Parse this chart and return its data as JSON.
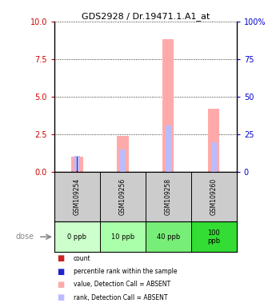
{
  "title": "GDS2928 / Dr.19471.1.A1_at",
  "samples": [
    "GSM109254",
    "GSM109256",
    "GSM109258",
    "GSM109260"
  ],
  "doses": [
    "0 ppb",
    "10 ppb",
    "40 ppb",
    "100\nppb"
  ],
  "dose_colors": [
    "#ccffcc",
    "#aaffaa",
    "#77ee77",
    "#33dd33"
  ],
  "bar_color_absent_value": "#ffaaaa",
  "bar_color_absent_rank": "#bbbbff",
  "bar_color_present_value": "#cc2222",
  "bar_color_present_rank": "#2222cc",
  "values_absent": [
    1.0,
    2.4,
    8.8,
    4.2
  ],
  "ranks_absent": [
    1.1,
    1.5,
    3.1,
    2.0
  ],
  "values_present": [
    0.08,
    0.0,
    0.0,
    0.0
  ],
  "ranks_present": [
    1.05,
    0.0,
    0.0,
    0.0
  ],
  "ylim_left": [
    0,
    10
  ],
  "ylim_right": [
    0,
    100
  ],
  "yticks_left": [
    0,
    2.5,
    5.0,
    7.5,
    10
  ],
  "yticks_right": [
    0,
    25,
    50,
    75,
    100
  ],
  "legend_items": [
    {
      "label": "count",
      "color": "#cc2222"
    },
    {
      "label": "percentile rank within the sample",
      "color": "#2222cc"
    },
    {
      "label": "value, Detection Call = ABSENT",
      "color": "#ffaaaa"
    },
    {
      "label": "rank, Detection Call = ABSENT",
      "color": "#bbbbff"
    }
  ],
  "sample_area_color": "#cccccc",
  "dose_label": "dose",
  "tick_color_left": "#cc0000",
  "tick_color_right": "#0000cc"
}
